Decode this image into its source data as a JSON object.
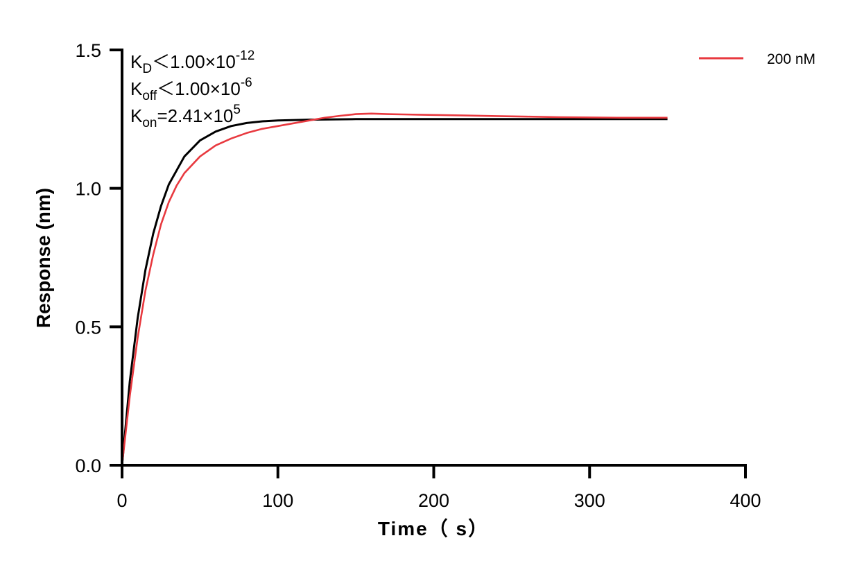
{
  "chart_data": {
    "type": "line",
    "xlabel": "Time（ s）",
    "ylabel": "Response (nm)",
    "xlim": [
      0,
      400
    ],
    "ylim": [
      0,
      1.5
    ],
    "xticks": [
      "0",
      "100",
      "200",
      "300",
      "400"
    ],
    "yticks": [
      "0.0",
      "0.5",
      "1.0",
      "1.5"
    ],
    "grid": false,
    "legend_position": "top-right",
    "annotations": [
      {
        "sym": "K",
        "sub": "D",
        "rel": "<",
        "mant": "1.00×10",
        "exp": "-12"
      },
      {
        "sym": "K",
        "sub": "off",
        "rel": "<",
        "mant": "1.00×10",
        "exp": "-6"
      },
      {
        "sym": "K",
        "sub": "on",
        "rel": "=",
        "mant": "2.41×10",
        "exp": "5"
      }
    ],
    "series": [
      {
        "name": "200 nM",
        "color": "#e8393f",
        "x": [
          0,
          5,
          10,
          15,
          20,
          25,
          30,
          35,
          40,
          50,
          60,
          70,
          80,
          90,
          100,
          110,
          120,
          130,
          140,
          150,
          160,
          170,
          180,
          190,
          200,
          220,
          240,
          260,
          280,
          300,
          320,
          340,
          350
        ],
        "y": [
          0,
          0.25,
          0.46,
          0.63,
          0.76,
          0.87,
          0.95,
          1.01,
          1.055,
          1.115,
          1.155,
          1.18,
          1.2,
          1.215,
          1.225,
          1.235,
          1.245,
          1.255,
          1.262,
          1.268,
          1.27,
          1.268,
          1.267,
          1.266,
          1.265,
          1.263,
          1.261,
          1.259,
          1.257,
          1.256,
          1.255,
          1.255,
          1.255
        ]
      },
      {
        "color": "#000000",
        "x": [
          0,
          5,
          10,
          15,
          20,
          25,
          30,
          40,
          50,
          60,
          70,
          80,
          90,
          100,
          120,
          150,
          200,
          250,
          300,
          350
        ],
        "y": [
          0,
          0.303,
          0.531,
          0.705,
          0.836,
          0.936,
          1.014,
          1.115,
          1.173,
          1.205,
          1.225,
          1.236,
          1.242,
          1.245,
          1.248,
          1.25,
          1.25,
          1.25,
          1.25,
          1.25
        ]
      }
    ]
  }
}
